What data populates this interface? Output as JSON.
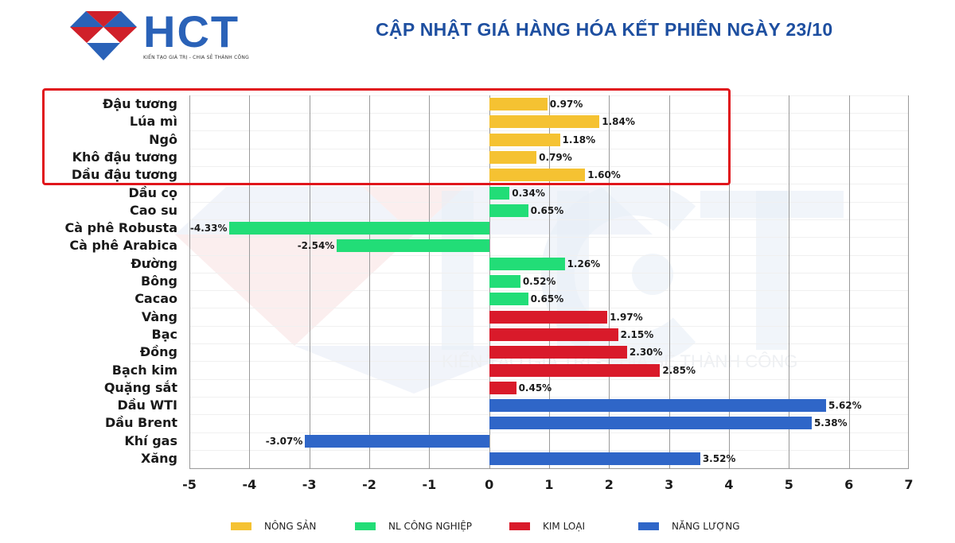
{
  "header": {
    "logo_text": "HCT",
    "logo_tagline": "KIẾN TẠO GIÁ TRỊ - CHIA SẺ THÀNH CÔNG",
    "title": "CẬP NHẬT GIÁ HÀNG HÓA KẾT PHIÊN NGÀY 23/10"
  },
  "watermark": {
    "text": "KIẾN TẠO GIÁ TRỊ - CHIA SẺ THÀNH CÔNG"
  },
  "colors": {
    "nong_san": "#f5c232",
    "nl_cong_nghiep": "#22dd77",
    "kim_loai": "#d91a2a",
    "nang_luong": "#2f66c8",
    "highlight_border": "#e0151b",
    "title": "#1e4fa0"
  },
  "legend": [
    {
      "label": "NÔNG SẢN",
      "color": "#f5c232"
    },
    {
      "label": "NL CÔNG NGHIỆP",
      "color": "#22dd77"
    },
    {
      "label": "KIM LOẠI",
      "color": "#d91a2a"
    },
    {
      "label": "NĂNG LƯỢNG",
      "color": "#2f66c8"
    }
  ],
  "chart_data": {
    "type": "bar",
    "orientation": "horizontal",
    "title": "CẬP NHẬT GIÁ HÀNG HÓA KẾT PHIÊN NGÀY 23/10",
    "xlabel": "",
    "ylabel": "",
    "xlim": [
      -5,
      7
    ],
    "xticks": [
      "-5",
      "-4",
      "-3",
      "-2",
      "-1",
      "0",
      "1",
      "2",
      "3",
      "4",
      "5",
      "6",
      "7"
    ],
    "grid": true,
    "legend_position": "bottom",
    "categories": [
      "Đậu tương",
      "Lúa mì",
      "Ngô",
      "Khô đậu tương",
      "Dầu đậu tương",
      "Dầu cọ",
      "Cao su",
      "Cà phê Robusta",
      "Cà phê Arabica",
      "Đường",
      "Bông",
      "Cacao",
      "Vàng",
      "Bạc",
      "Đồng",
      "Bạch kim",
      "Quặng sắt",
      "Dầu WTI",
      "Dầu Brent",
      "Khí gas",
      "Xăng"
    ],
    "values": [
      0.97,
      1.84,
      1.18,
      0.79,
      1.6,
      0.34,
      0.65,
      -4.33,
      -2.54,
      1.26,
      0.52,
      0.65,
      1.97,
      2.15,
      2.3,
      2.85,
      0.45,
      5.62,
      5.38,
      -3.07,
      3.52
    ],
    "value_labels": [
      "0.97%",
      "1.84%",
      "1.18%",
      "0.79%",
      "1.60%",
      "0.34%",
      "0.65%",
      "-4.33%",
      "-2.54%",
      "1.26%",
      "0.52%",
      "0.65%",
      "1.97%",
      "2.15%",
      "2.30%",
      "2.85%",
      "0.45%",
      "5.62%",
      "5.38%",
      "-3.07%",
      "3.52%"
    ],
    "groups": [
      "NÔNG SẢN",
      "NÔNG SẢN",
      "NÔNG SẢN",
      "NÔNG SẢN",
      "NÔNG SẢN",
      "NL CÔNG NGHIỆP",
      "NL CÔNG NGHIỆP",
      "NL CÔNG NGHIỆP",
      "NL CÔNG NGHIỆP",
      "NL CÔNG NGHIỆP",
      "NL CÔNG NGHIỆP",
      "NL CÔNG NGHIỆP",
      "KIM LOẠI",
      "KIM LOẠI",
      "KIM LOẠI",
      "KIM LOẠI",
      "KIM LOẠI",
      "NĂNG LƯỢNG",
      "NĂNG LƯỢNG",
      "NĂNG LƯỢNG",
      "NĂNG LƯỢNG"
    ],
    "highlighted": [
      "Đậu tương",
      "Lúa mì",
      "Ngô",
      "Khô đậu tương",
      "Dầu đậu tương"
    ],
    "series": [
      {
        "name": "NÔNG SẢN",
        "categories": [
          "Đậu tương",
          "Lúa mì",
          "Ngô",
          "Khô đậu tương",
          "Dầu đậu tương"
        ],
        "values": [
          0.97,
          1.84,
          1.18,
          0.79,
          1.6
        ]
      },
      {
        "name": "NL CÔNG NGHIỆP",
        "categories": [
          "Dầu cọ",
          "Cao su",
          "Cà phê Robusta",
          "Cà phê Arabica",
          "Đường",
          "Bông",
          "Cacao"
        ],
        "values": [
          0.34,
          0.65,
          -4.33,
          -2.54,
          1.26,
          0.52,
          0.65
        ]
      },
      {
        "name": "KIM LOẠI",
        "categories": [
          "Vàng",
          "Bạc",
          "Đồng",
          "Bạch kim",
          "Quặng sắt"
        ],
        "values": [
          1.97,
          2.15,
          2.3,
          2.85,
          0.45
        ]
      },
      {
        "name": "NĂNG LƯỢNG",
        "categories": [
          "Dầu WTI",
          "Dầu Brent",
          "Khí gas",
          "Xăng"
        ],
        "values": [
          5.62,
          5.38,
          -3.07,
          3.52
        ]
      }
    ]
  }
}
